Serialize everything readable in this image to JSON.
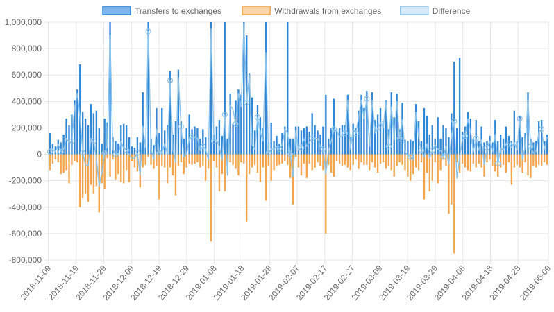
{
  "chart_data": {
    "type": "bar",
    "legend": {
      "placement": "top-center",
      "items": [
        {
          "label": "Transfers to exchanges",
          "fill": "#7fb5ef",
          "stroke": "#2f87d8"
        },
        {
          "label": "Withdrawals from exchanges",
          "fill": "#fdd4a6",
          "stroke": "#f4a54b"
        },
        {
          "label": "Difference",
          "fill": "#d6e9f8",
          "stroke": "#8cc3ea"
        }
      ]
    },
    "ylim": [
      -800000,
      1000000
    ],
    "yticks": [
      1000000,
      800000,
      600000,
      400000,
      200000,
      0,
      -200000,
      -400000,
      -600000,
      -800000
    ],
    "ytick_labels": [
      "1,000,000",
      "800,000",
      "600,000",
      "400,000",
      "200,000",
      "0",
      "-200,000",
      "-400,000",
      "-600,000",
      "-800,000"
    ],
    "x_start": "2018-11-09",
    "x_end": "2019-05-09",
    "xtick_labels": [
      "2018-11-09",
      "2018-11-19",
      "2018-11-29",
      "2018-12-09",
      "2018-12-19",
      "2018-12-29",
      "2019-01-08",
      "2019-01-18",
      "2019-01-28",
      "2019-02-07",
      "2019-02-17",
      "2019-02-27",
      "2019-03-09",
      "2019-03-19",
      "2019-03-29",
      "2019-04-08",
      "2019-04-18",
      "2019-04-28",
      "2019-05-09"
    ],
    "grid": true,
    "colors": {
      "transfers": "#2f87d8",
      "withdrawals": "#f4a54b",
      "difference": "#8cc3ea",
      "grid": "#e6e6e6",
      "axis_text": "#666666"
    },
    "series": [
      {
        "name": "Transfers to exchanges",
        "values": [
          160000,
          80000,
          60000,
          110000,
          90000,
          150000,
          270000,
          220000,
          300000,
          410000,
          490000,
          680000,
          320000,
          270000,
          220000,
          380000,
          310000,
          330000,
          200000,
          80000,
          270000,
          240000,
          1000000,
          130000,
          100000,
          80000,
          220000,
          230000,
          220000,
          130000,
          60000,
          50000,
          130000,
          90000,
          470000,
          60000,
          1000000,
          120000,
          70000,
          350000,
          160000,
          350000,
          180000,
          220000,
          630000,
          150000,
          250000,
          640000,
          250000,
          120000,
          200000,
          300000,
          190000,
          210000,
          200000,
          120000,
          190000,
          130000,
          120000,
          1000000,
          150000,
          210000,
          260000,
          140000,
          1000000,
          120000,
          460000,
          230000,
          410000,
          490000,
          450000,
          1000000,
          900000,
          610000,
          430000,
          180000,
          370000,
          280000,
          200000,
          1000000,
          90000,
          240000,
          100000,
          140000,
          80000,
          160000,
          210000,
          1000000,
          120000,
          120000,
          210000,
          210000,
          180000,
          200000,
          210000,
          170000,
          310000,
          220000,
          180000,
          150000,
          210000,
          450000,
          120000,
          200000,
          420000,
          190000,
          200000,
          220000,
          220000,
          450000,
          130000,
          230000,
          200000,
          330000,
          450000,
          350000,
          480000,
          120000,
          470000,
          260000,
          300000,
          350000,
          250000,
          410000,
          190000,
          470000,
          280000,
          460000,
          190000,
          390000,
          110000,
          100000,
          110000,
          100000,
          380000,
          250000,
          100000,
          350000,
          290000,
          150000,
          220000,
          120000,
          280000,
          120000,
          220000,
          200000,
          130000,
          310000,
          700000,
          200000,
          730000,
          170000,
          210000,
          320000,
          270000,
          120000,
          260000,
          100000,
          210000,
          90000,
          100000,
          140000,
          90000,
          260000,
          100000,
          150000,
          120000,
          210000,
          140000,
          100000,
          330000,
          100000,
          290000,
          130000,
          160000,
          470000,
          120000,
          90000,
          100000,
          250000,
          260000,
          100000,
          150000
        ]
      },
      {
        "name": "Withdrawals from exchanges",
        "values": [
          -120000,
          -70000,
          -40000,
          -60000,
          -150000,
          -140000,
          -120000,
          -220000,
          -80000,
          -50000,
          -60000,
          -400000,
          -330000,
          -300000,
          -360000,
          -230000,
          -300000,
          -240000,
          -440000,
          -220000,
          -260000,
          -30000,
          -170000,
          -40000,
          -190000,
          -150000,
          -210000,
          -220000,
          -120000,
          -210000,
          -50000,
          -100000,
          -130000,
          -250000,
          -100000,
          -80000,
          -20000,
          -80000,
          -110000,
          -90000,
          -340000,
          -90000,
          -100000,
          -220000,
          -100000,
          -160000,
          -310000,
          -90000,
          -60000,
          -150000,
          -100000,
          -70000,
          -80000,
          -70000,
          -60000,
          -100000,
          -90000,
          -200000,
          -110000,
          -660000,
          -50000,
          -100000,
          -280000,
          -150000,
          -280000,
          -140000,
          -60000,
          -80000,
          -110000,
          -160000,
          -60000,
          -70000,
          -510000,
          -150000,
          -100000,
          -80000,
          -140000,
          -210000,
          -100000,
          -350000,
          -90000,
          -200000,
          -120000,
          -90000,
          -80000,
          -70000,
          -50000,
          -80000,
          -180000,
          -380000,
          -20000,
          -100000,
          -160000,
          -70000,
          -180000,
          -70000,
          -120000,
          -100000,
          -60000,
          -90000,
          -120000,
          -600000,
          -80000,
          -140000,
          -170000,
          -50000,
          -70000,
          -90000,
          -80000,
          -100000,
          -120000,
          -80000,
          -40000,
          -110000,
          -60000,
          -80000,
          -80000,
          -120000,
          -60000,
          -100000,
          -140000,
          -70000,
          -60000,
          -110000,
          -90000,
          -120000,
          -170000,
          -90000,
          -60000,
          -80000,
          -120000,
          -170000,
          -200000,
          -150000,
          -100000,
          -120000,
          -60000,
          -340000,
          -140000,
          -280000,
          -200000,
          -60000,
          -220000,
          -120000,
          -40000,
          -90000,
          -450000,
          -380000,
          -750000,
          -60000,
          -140000,
          -70000,
          -100000,
          -120000,
          -130000,
          -70000,
          -100000,
          -70000,
          -100000,
          -170000,
          -60000,
          -40000,
          -90000,
          -130000,
          -170000,
          -100000,
          -80000,
          -140000,
          -60000,
          -230000,
          -100000,
          -80000,
          -100000,
          -140000,
          -60000,
          -160000,
          -180000,
          -90000,
          -100000,
          -80000,
          -90000,
          -60000,
          -80000,
          -70000,
          -40000,
          -50000
        ]
      },
      {
        "name": "Difference",
        "values": [
          20000,
          40000,
          20000,
          80000,
          20000,
          40000,
          120000,
          90000,
          100000,
          350000,
          460000,
          280000,
          10000,
          -80000,
          -90000,
          120000,
          100000,
          -30000,
          -240000,
          -140000,
          10000,
          60000,
          900000,
          40000,
          0,
          -10000,
          100000,
          40000,
          30000,
          0,
          -30000,
          -30000,
          10000,
          -160000,
          210000,
          50000,
          930000,
          40000,
          -40000,
          190000,
          10000,
          10000,
          80000,
          0,
          560000,
          30000,
          -60000,
          580000,
          210000,
          -20000,
          0,
          120000,
          130000,
          130000,
          120000,
          30000,
          60000,
          40000,
          -40000,
          950000,
          100000,
          110000,
          60000,
          -40000,
          300000,
          -160000,
          370000,
          340000,
          230000,
          460000,
          360000,
          990000,
          390000,
          600000,
          70000,
          40000,
          280000,
          170000,
          100000,
          770000,
          10000,
          40000,
          40000,
          60000,
          40000,
          70000,
          190000,
          160000,
          0,
          -170000,
          180000,
          30000,
          50000,
          120000,
          60000,
          90000,
          120000,
          120000,
          120000,
          60000,
          40000,
          -150000,
          30000,
          100000,
          190000,
          180000,
          130000,
          140000,
          160000,
          410000,
          40000,
          190000,
          160000,
          280000,
          410000,
          270000,
          420000,
          60000,
          410000,
          160000,
          200000,
          240000,
          200000,
          400000,
          60000,
          360000,
          110000,
          400000,
          120000,
          260000,
          20000,
          -10000,
          -20000,
          -40000,
          320000,
          130000,
          30000,
          -20000,
          80000,
          -30000,
          30000,
          70000,
          40000,
          30000,
          -20000,
          60000,
          -80000,
          140000,
          250000,
          -180000,
          -20000,
          110000,
          140000,
          270000,
          170000,
          20000,
          120000,
          30000,
          110000,
          -80000,
          50000,
          100000,
          20000,
          150000,
          -70000,
          50000,
          30000,
          80000,
          80000,
          50000,
          90000,
          30000,
          270000,
          -40000,
          60000,
          410000,
          60000,
          10000,
          20000,
          170000,
          190000,
          40000,
          130000
        ]
      }
    ]
  }
}
